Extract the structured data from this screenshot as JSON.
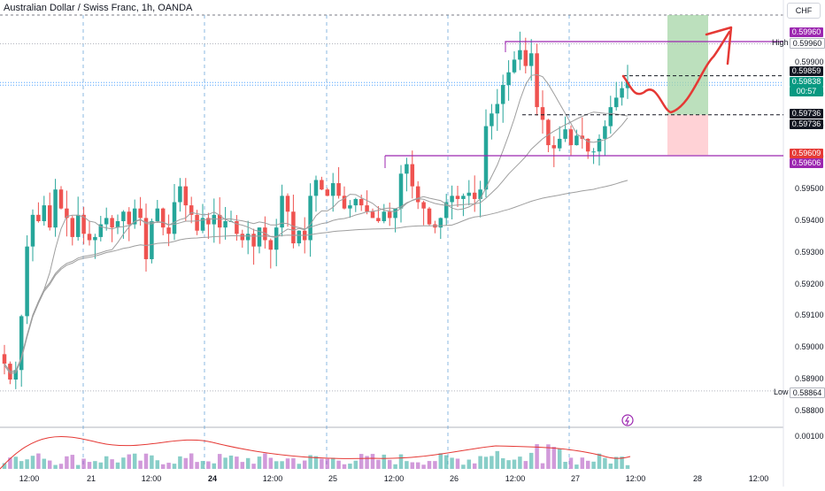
{
  "header": {
    "title": "Australian Dollar / Swiss Franc, 1h, OANDA",
    "currency": "CHF"
  },
  "colors": {
    "up": "#26a69a",
    "down": "#ef5350",
    "purple": "#9c27b0",
    "target": "#a5d6a7",
    "stop": "#ffcdd2",
    "drawing": "#e53935",
    "grid": "#5b9bd5",
    "ma": "#9e9e9e"
  },
  "price_axis": {
    "ticks": [
      "0.59900",
      "0.59800",
      "0.59700",
      "0.59600",
      "0.59500",
      "0.59400",
      "0.59300",
      "0.59200",
      "0.59100",
      "0.59000",
      "0.58900",
      "0.58800"
    ],
    "volume_tick": "0.00100"
  },
  "tags": {
    "purple_top": "0.59960",
    "high_value": "0.59960",
    "high_label": "High",
    "level_a": "0.59859",
    "last_price": "0.59838",
    "countdown": "00:57",
    "level_b1": "0.59736",
    "level_b2": "0.59736",
    "stop_price": "0.59609",
    "purple_bottom": "0.59606",
    "low_label": "Low",
    "low_value": "0.58864"
  },
  "time_axis": [
    "12:00",
    "21",
    "12:00",
    "24",
    "12:00",
    "25",
    "12:00",
    "26",
    "12:00",
    "27",
    "12:00",
    "28",
    "12:00"
  ],
  "chart_data": {
    "type": "candlestick",
    "title": "Australian Dollar / Swiss Franc, 1h, OANDA",
    "x": [
      "12:00",
      "21",
      "12:00",
      "24",
      "12:00",
      "25",
      "12:00",
      "26",
      "12:00",
      "27",
      "12:00",
      "28",
      "12:00"
    ],
    "ylim": [
      0.5882,
      0.6003
    ],
    "levels": {
      "high": 0.5996,
      "low": 0.58864,
      "last": 0.59838,
      "entry": 0.59736,
      "stop": 0.59609,
      "target": 0.6001
    },
    "close_path": [
      0.5895,
      0.589,
      0.5893,
      0.591,
      0.5932,
      0.5942,
      0.594,
      0.5945,
      0.5938,
      0.595,
      0.5944,
      0.5941,
      0.5935,
      0.5942,
      0.5936,
      0.5934,
      0.5935,
      0.5939,
      0.5941,
      0.5938,
      0.594,
      0.5943,
      0.5939,
      0.5944,
      0.5941,
      0.5928,
      0.594,
      0.5944,
      0.5938,
      0.5936,
      0.5946,
      0.5951,
      0.5945,
      0.5942,
      0.5937,
      0.5941,
      0.5939,
      0.5942,
      0.5938,
      0.594,
      0.594,
      0.5936,
      0.5934,
      0.5936,
      0.5932,
      0.5938,
      0.5934,
      0.5931,
      0.5938,
      0.5948,
      0.5943,
      0.5933,
      0.5937,
      0.5934,
      0.5948,
      0.5953,
      0.595,
      0.5948,
      0.5952,
      0.5948,
      0.5944,
      0.5945,
      0.5947,
      0.5945,
      0.5943,
      0.5941,
      0.594,
      0.5943,
      0.5941,
      0.5944,
      0.5955,
      0.5958,
      0.5951,
      0.5946,
      0.5944,
      0.5939,
      0.5938,
      0.5941,
      0.5946,
      0.5948,
      0.5947,
      0.5948,
      0.5949,
      0.5947,
      0.595,
      0.597,
      0.5974,
      0.5977,
      0.5983,
      0.5987,
      0.5991,
      0.5994,
      0.5989,
      0.5993,
      0.5976,
      0.5972,
      0.5964,
      0.5963,
      0.5966,
      0.5969,
      0.5964,
      0.5967,
      0.5966,
      0.5962,
      0.5962,
      0.5966,
      0.597,
      0.5976,
      0.5979,
      0.5982,
      0.5984
    ]
  }
}
